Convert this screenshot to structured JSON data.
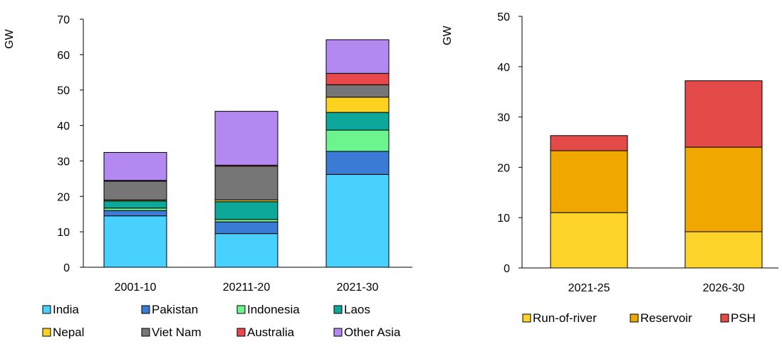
{
  "chart_data": [
    {
      "type": "bar",
      "stacked": true,
      "ylabel": "GW",
      "ylim": [
        0,
        70
      ],
      "yticks": [
        0,
        10,
        20,
        30,
        40,
        50,
        60,
        70
      ],
      "categories": [
        "2001-10",
        "20211-20",
        "2021-30"
      ],
      "series": [
        {
          "name": "India",
          "color": "#48d1ff",
          "values": [
            14.5,
            9.5,
            26.2
          ]
        },
        {
          "name": "Pakistan",
          "color": "#3a7bd5",
          "values": [
            1.5,
            3.3,
            6.5
          ]
        },
        {
          "name": "Indonesia",
          "color": "#6cf58e",
          "values": [
            0.7,
            0.7,
            6.0
          ]
        },
        {
          "name": "Laos",
          "color": "#0ea89a",
          "values": [
            2.0,
            5.0,
            5.0
          ]
        },
        {
          "name": "Nepal",
          "color": "#ffd21f",
          "values": [
            0.3,
            0.5,
            4.3
          ]
        },
        {
          "name": "Viet Nam",
          "color": "#767676",
          "values": [
            5.3,
            9.5,
            3.5
          ]
        },
        {
          "name": "Australia",
          "color": "#e8484a",
          "values": [
            0.2,
            0.3,
            3.2
          ]
        },
        {
          "name": "Other Asia",
          "color": "#b388f0",
          "values": [
            7.9,
            15.2,
            9.5
          ]
        }
      ],
      "legend": "bottom"
    },
    {
      "type": "bar",
      "stacked": true,
      "ylabel": "GW",
      "ylim": [
        0,
        50
      ],
      "yticks": [
        0,
        10,
        20,
        30,
        40,
        50
      ],
      "categories": [
        "2021-25",
        "2026-30"
      ],
      "series": [
        {
          "name": "Run-of-river",
          "color": "#ffd42a",
          "values": [
            11.0,
            7.2
          ]
        },
        {
          "name": "Reservoir",
          "color": "#f0a800",
          "values": [
            12.3,
            16.8
          ]
        },
        {
          "name": "PSH",
          "color": "#e34a48",
          "values": [
            3.0,
            13.2
          ]
        }
      ],
      "legend": "bottom"
    }
  ]
}
